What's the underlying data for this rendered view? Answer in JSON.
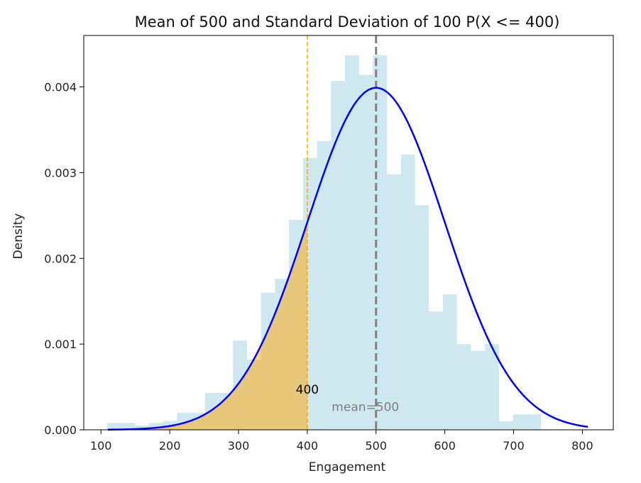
{
  "chart_data": {
    "type": "bar",
    "title": "Mean of 500 and Standard Deviation of 100 P(X <= 400)",
    "xlabel": "Engagement",
    "ylabel": "Density",
    "xlim": [
      75,
      845
    ],
    "ylim": [
      0,
      0.0046
    ],
    "xticks": [
      100,
      200,
      300,
      400,
      500,
      600,
      700,
      800
    ],
    "yticks": [
      0.0,
      0.001,
      0.002,
      0.003,
      0.004
    ],
    "ytick_labels": [
      "0.000",
      "0.001",
      "0.002",
      "0.003",
      "0.004"
    ],
    "histogram": {
      "bin_edges": [
        108.9,
        129.2,
        149.6,
        169.9,
        190.3,
        210.6,
        231.0,
        251.3,
        271.7,
        292.0,
        312.4,
        332.7,
        353.1,
        373.4,
        393.8,
        414.1,
        434.5,
        454.8,
        475.2,
        495.5,
        515.9,
        536.2,
        556.6,
        576.9,
        597.3,
        617.6,
        638.0,
        658.3,
        678.7,
        699.0,
        719.4,
        739.7,
        760.1,
        780.4
      ],
      "density": [
        8e-05,
        8e-05,
        5e-05,
        8e-05,
        0.0001,
        0.0002,
        0.0002,
        0.00043,
        0.00043,
        0.00104,
        0.00082,
        0.0016,
        0.00176,
        0.00245,
        0.00317,
        0.00337,
        0.00407,
        0.00437,
        0.00414,
        0.00437,
        0.00298,
        0.00321,
        0.00262,
        0.00138,
        0.00158,
        0.001,
        0.00092,
        0.001,
        0.0001,
        0.00018,
        0.00018,
        0.0,
        0.0
      ],
      "color": "#add8e6",
      "alpha": 0.6
    },
    "pdf_curve": {
      "mean": 500,
      "std": 100,
      "x_range": [
        110,
        808
      ],
      "color": "#0000ff"
    },
    "shaded_region": {
      "x_from": 110,
      "x_to": 400,
      "color": "#ffa500",
      "alpha": 0.5
    },
    "annotations": {
      "threshold": {
        "value": 400,
        "label": "400",
        "color": "#ffa500"
      },
      "mean": {
        "value": 500,
        "label": "mean=500",
        "color": "#808080"
      }
    },
    "grid": false,
    "legend": "none"
  }
}
